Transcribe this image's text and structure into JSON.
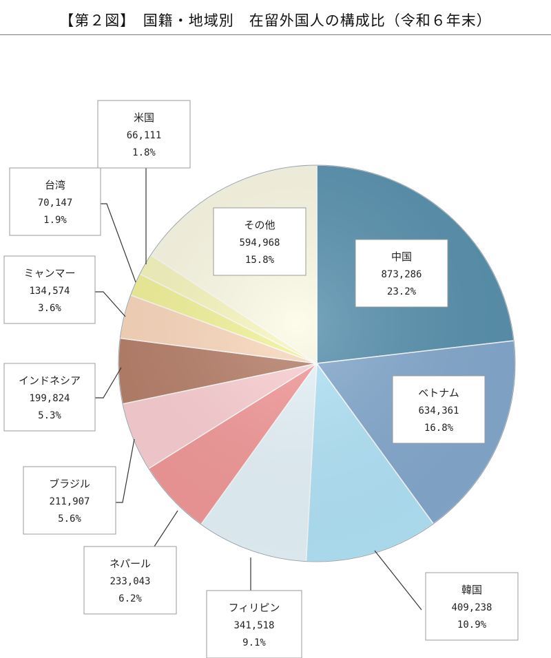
{
  "title": "【第２図】　国籍・地域別　在留外国人の構成比（令和６年末）",
  "chart_data": {
    "type": "pie",
    "title": "【第２図】　国籍・地域別　在留外国人の構成比（令和６年末）",
    "start_angle": "12 o'clock",
    "direction": "clockwise",
    "slices": [
      {
        "name": "中国",
        "value_label": "873,286",
        "value": 873286,
        "percent_label": "23.2%",
        "percent": 23.2,
        "color": "#5a93b0"
      },
      {
        "name": "ベトナム",
        "value_label": "634,361",
        "value": 634361,
        "percent_label": "16.8%",
        "percent": 16.8,
        "color": "#86abd0"
      },
      {
        "name": "韓国",
        "value_label": "409,238",
        "value": 409238,
        "percent_label": "10.9%",
        "percent": 10.9,
        "color": "#b4e6fa"
      },
      {
        "name": "フィリピン",
        "value_label": "341,518",
        "value": 341518,
        "percent_label": "9.1%",
        "percent": 9.1,
        "color": "#e8f6fc"
      },
      {
        "name": "ネパール",
        "value_label": "233,043",
        "value": 233043,
        "percent_label": "6.2%",
        "percent": 6.2,
        "color": "#f59a9a"
      },
      {
        "name": "ブラジル",
        "value_label": "211,907",
        "value": 211907,
        "percent_label": "5.6%",
        "percent": 5.6,
        "color": "#fdd0d4"
      },
      {
        "name": "インドネシア",
        "value_label": "199,824",
        "value": 199824,
        "percent_label": "5.3%",
        "percent": 5.3,
        "color": "#b8806a"
      },
      {
        "name": "ミャンマー",
        "value_label": "134,574",
        "value": 134574,
        "percent_label": "3.6%",
        "percent": 3.6,
        "color": "#fcd9bd"
      },
      {
        "name": "台湾",
        "value_label": "70,147",
        "value": 70147,
        "percent_label": "1.9%",
        "percent": 1.9,
        "color": "#f4f49a"
      },
      {
        "name": "米国",
        "value_label": "66,111",
        "value": 66111,
        "percent_label": "1.8%",
        "percent": 1.8,
        "color": "#f8f8c0"
      },
      {
        "name": "その他",
        "value_label": "594,968",
        "value": 594968,
        "percent_label": "15.8%",
        "percent": 15.8,
        "color": "#fdfbe6"
      }
    ]
  }
}
